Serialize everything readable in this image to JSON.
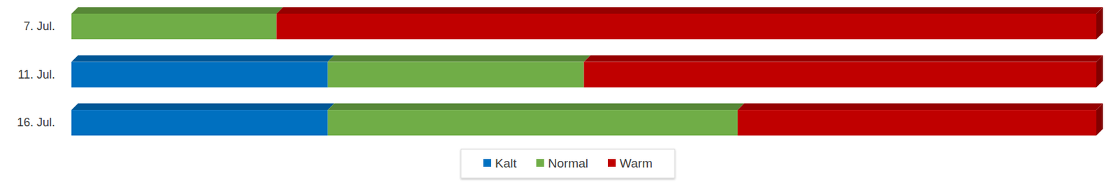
{
  "chart_data": {
    "type": "bar",
    "orientation": "horizontal",
    "stacked": true,
    "tick_labels": "y",
    "legend": "bottom",
    "categories": [
      "7. Jul.",
      "11. Jul.",
      "16. Jul."
    ],
    "xlim": [
      0,
      100
    ],
    "series": [
      {
        "name": "Kalt",
        "color": "#0070c0",
        "values": [
          0,
          25,
          25
        ]
      },
      {
        "name": "Normal",
        "color": "#70ad47",
        "values": [
          20,
          25,
          40
        ]
      },
      {
        "name": "Warm",
        "color": "#c00000",
        "values": [
          80,
          50,
          35
        ]
      }
    ]
  }
}
